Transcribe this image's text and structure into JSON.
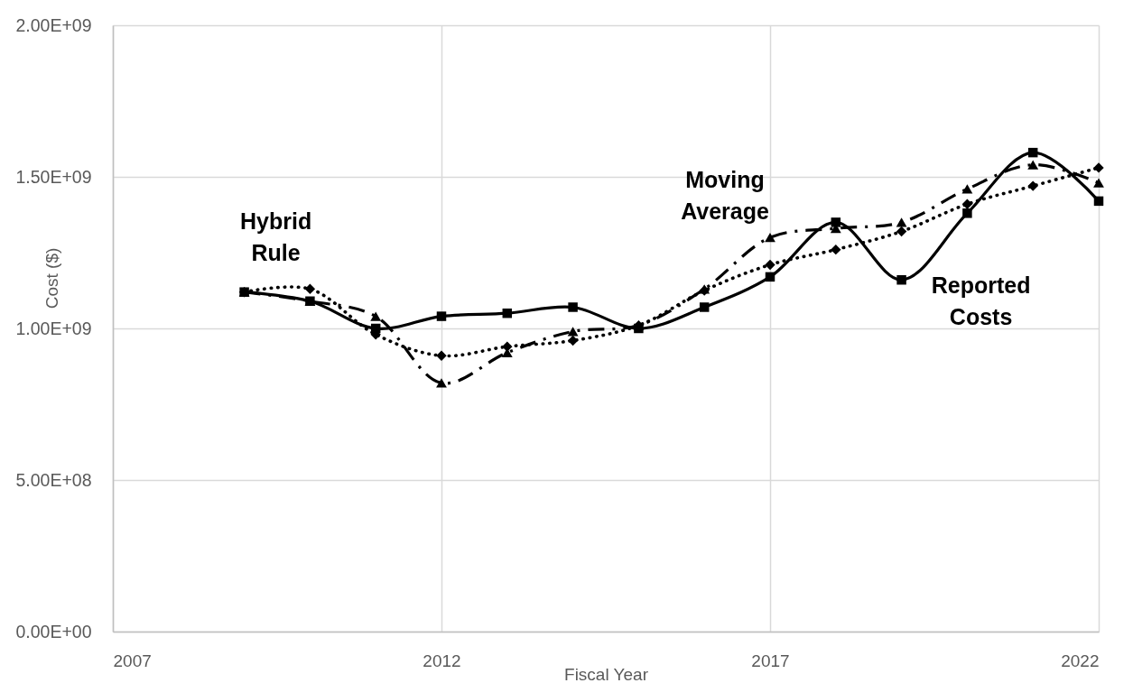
{
  "chart_data": {
    "type": "line",
    "xlabel": "Fiscal Year",
    "ylabel": "Cost ($)",
    "x": [
      2009,
      2010,
      2011,
      2012,
      2013,
      2014,
      2015,
      2016,
      2017,
      2018,
      2019,
      2020,
      2021,
      2022
    ],
    "series": [
      {
        "name": "Hybrid Rule",
        "color": "#000000",
        "marker": "diamond",
        "line_style": "dotted",
        "values": [
          1120000000,
          1130000000,
          980000000,
          910000000,
          940000000,
          960000000,
          1010000000,
          1125000000,
          1210000000,
          1260000000,
          1320000000,
          1410000000,
          1470000000,
          1530000000
        ]
      },
      {
        "name": "Moving Average",
        "color": "#000000",
        "marker": "triangle",
        "line_style": "dashed",
        "values": [
          1120000000,
          1090000000,
          1040000000,
          820000000,
          920000000,
          990000000,
          1010000000,
          1130000000,
          1300000000,
          1330000000,
          1350000000,
          1460000000,
          1540000000,
          1480000000
        ]
      },
      {
        "name": "Reported Costs",
        "color": "#000000",
        "marker": "square",
        "line_style": "solid",
        "values": [
          1120000000,
          1090000000,
          1000000000,
          1040000000,
          1050000000,
          1070000000,
          1000000000,
          1070000000,
          1170000000,
          1350000000,
          1160000000,
          1380000000,
          1580000000,
          1420000000
        ]
      }
    ],
    "xlim": [
      2007,
      2022
    ],
    "xticks": [
      2007,
      2012,
      2017,
      2022
    ],
    "ylim": [
      0,
      2000000000
    ],
    "yticks": [
      {
        "value": 0,
        "label": "0.00E+00"
      },
      {
        "value": 500000000,
        "label": "5.00E+08"
      },
      {
        "value": 1000000000,
        "label": "1.00E+09"
      },
      {
        "value": 1500000000,
        "label": "1.50E+09"
      },
      {
        "value": 2000000000,
        "label": "2.00E+09"
      }
    ],
    "grid": true
  }
}
